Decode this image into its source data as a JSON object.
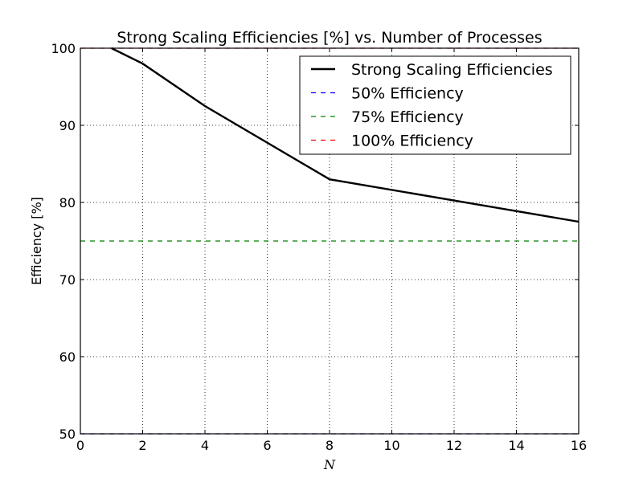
{
  "chart_data": {
    "type": "line",
    "title": "Strong Scaling Efficiencies [%] vs. Number of Processes",
    "xlabel": "N",
    "ylabel": "Efficiency [%]",
    "xlim": [
      0,
      16
    ],
    "ylim": [
      50,
      100
    ],
    "xticks": [
      0,
      2,
      4,
      6,
      8,
      10,
      12,
      14,
      16
    ],
    "yticks": [
      50,
      60,
      70,
      80,
      90,
      100
    ],
    "grid": true,
    "legend_position": "top-right",
    "series": [
      {
        "name": "Strong Scaling Efficiencies",
        "style": "solid",
        "color": "#000000",
        "x": [
          1,
          2,
          4,
          8,
          16
        ],
        "y": [
          100,
          98,
          92.5,
          83,
          77.5
        ]
      },
      {
        "name": "50% Efficiency",
        "style": "dashed",
        "color": "#0000ff",
        "x": [
          0,
          16
        ],
        "y": [
          50,
          50
        ]
      },
      {
        "name": "75% Efficiency",
        "style": "dashed",
        "color": "#008000",
        "x": [
          0,
          16
        ],
        "y": [
          75,
          75
        ]
      },
      {
        "name": "100% Efficiency",
        "style": "dashed",
        "color": "#ff0000",
        "x": [
          0,
          16
        ],
        "y": [
          100,
          100
        ]
      }
    ]
  }
}
